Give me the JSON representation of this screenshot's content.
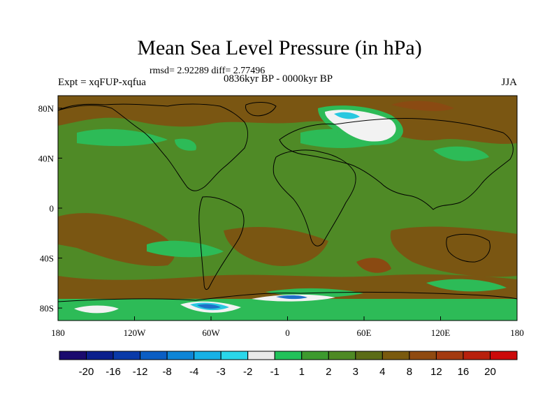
{
  "title": "Mean Sea Level Pressure (in hPa)",
  "stats": "rmsd= 2.92289 diff= 2.77496",
  "experiment": "Expt = xqFUP-xqfua",
  "period": "0836kyr BP - 0000kyr BP",
  "season": "JJA",
  "map": {
    "lat_range": [
      -90,
      90
    ],
    "lon_range": [
      -180,
      180
    ],
    "lat_ticks": [
      {
        "value": 80,
        "label": "80N"
      },
      {
        "value": 40,
        "label": "40N"
      },
      {
        "value": 0,
        "label": "0"
      },
      {
        "value": -40,
        "label": "40S"
      },
      {
        "value": -80,
        "label": "80S"
      }
    ],
    "lon_ticks": [
      {
        "value": -180,
        "label": "180"
      },
      {
        "value": -120,
        "label": "120W"
      },
      {
        "value": -60,
        "label": "60W"
      },
      {
        "value": 0,
        "label": "0"
      },
      {
        "value": 60,
        "label": "60E"
      },
      {
        "value": 120,
        "label": "120E"
      },
      {
        "value": 180,
        "label": "180"
      }
    ]
  },
  "colorbar": {
    "colors": [
      "#1a0a6e",
      "#0b1f8c",
      "#0a3aa8",
      "#0b5ec4",
      "#0e85d6",
      "#17b1e6",
      "#2ad6ea",
      "#eaeaea",
      "#21c25a",
      "#3d9a2e",
      "#4e8a24",
      "#5b6c16",
      "#7a5a0e",
      "#8f4a10",
      "#a33a10",
      "#b8200c",
      "#cc0a0a"
    ],
    "labels": [
      "-20",
      "-16",
      "-12",
      "-8",
      "-4",
      "-3",
      "-2",
      "-1",
      "1",
      "2",
      "3",
      "4",
      "8",
      "12",
      "16",
      "20"
    ]
  },
  "colors": {
    "background_field": "#4f8a26",
    "positive_brown": "#7a5612",
    "light_green": "#2dbb57",
    "white": "#f2f2f2",
    "cyan": "#28c8e0",
    "blue": "#1e6fc8"
  }
}
